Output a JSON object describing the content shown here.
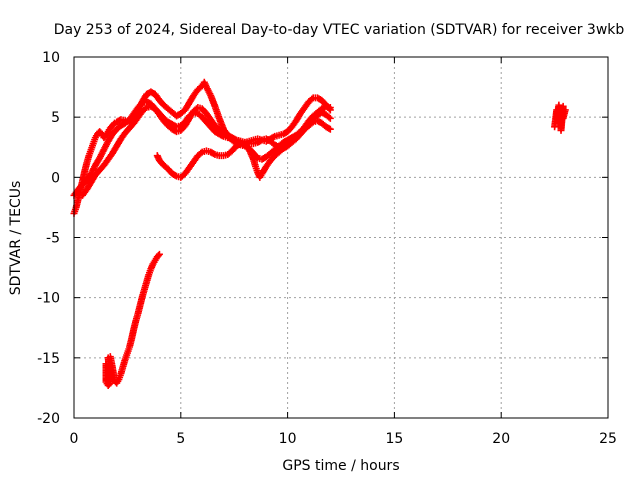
{
  "chart_data": {
    "type": "scatter",
    "title": "Day 253 of 2024, Sidereal Day-to-day VTEC variation (SDTVAR) for receiver 3wkb",
    "xlabel": "GPS time / hours",
    "ylabel": "SDTVAR / TECUs",
    "xlim": [
      0,
      25
    ],
    "ylim": [
      -20,
      10
    ],
    "xticks": [
      "0",
      "5",
      "10",
      "15",
      "20",
      "25"
    ],
    "yticks": [
      "-20",
      "-15",
      "-10",
      "-5",
      "0",
      "5",
      "10"
    ],
    "grid": true,
    "marker": "plus",
    "color": "#ff0000",
    "series": [
      {
        "points": [
          [
            0.0,
            -3.0
          ],
          [
            0.1,
            -2.5
          ],
          [
            0.2,
            -1.8
          ],
          [
            0.3,
            -1.0
          ],
          [
            0.4,
            -0.3
          ],
          [
            0.5,
            0.5
          ],
          [
            0.6,
            1.2
          ],
          [
            0.7,
            1.8
          ],
          [
            0.8,
            2.3
          ],
          [
            0.9,
            2.8
          ],
          [
            1.0,
            3.3
          ],
          [
            1.1,
            3.6
          ],
          [
            1.2,
            3.8
          ],
          [
            1.3,
            3.6
          ],
          [
            1.4,
            3.3
          ],
          [
            1.5,
            3.5
          ],
          [
            1.6,
            3.8
          ],
          [
            1.7,
            4.1
          ],
          [
            1.8,
            4.3
          ],
          [
            1.9,
            4.5
          ],
          [
            2.0,
            4.6
          ],
          [
            2.2,
            4.8
          ],
          [
            2.4,
            4.7
          ],
          [
            2.6,
            4.6
          ],
          [
            2.8,
            4.9
          ],
          [
            3.0,
            5.6
          ],
          [
            3.2,
            6.3
          ],
          [
            3.4,
            6.9
          ],
          [
            3.6,
            7.1
          ],
          [
            3.8,
            6.9
          ],
          [
            4.0,
            6.4
          ],
          [
            4.2,
            6.0
          ],
          [
            4.4,
            5.7
          ],
          [
            4.6,
            5.4
          ],
          [
            4.8,
            5.1
          ],
          [
            5.0,
            5.3
          ],
          [
            5.2,
            5.6
          ],
          [
            5.4,
            6.2
          ],
          [
            5.6,
            6.8
          ],
          [
            5.8,
            7.3
          ],
          [
            6.0,
            7.6
          ],
          [
            6.1,
            7.9
          ],
          [
            6.2,
            7.5
          ],
          [
            6.4,
            6.8
          ],
          [
            6.6,
            5.9
          ],
          [
            6.8,
            4.9
          ],
          [
            7.0,
            4.0
          ],
          [
            7.2,
            3.5
          ],
          [
            7.4,
            3.3
          ],
          [
            7.6,
            3.1
          ],
          [
            7.8,
            3.0
          ],
          [
            8.0,
            2.9
          ],
          [
            8.2,
            3.0
          ],
          [
            8.4,
            3.1
          ],
          [
            8.6,
            3.2
          ],
          [
            8.8,
            3.1
          ],
          [
            9.0,
            3.0
          ],
          [
            9.2,
            3.2
          ],
          [
            9.4,
            3.4
          ],
          [
            9.6,
            3.5
          ],
          [
            9.8,
            3.6
          ],
          [
            10.0,
            3.8
          ],
          [
            10.2,
            4.2
          ],
          [
            10.4,
            4.7
          ],
          [
            10.6,
            5.3
          ],
          [
            10.8,
            5.8
          ],
          [
            11.0,
            6.3
          ],
          [
            11.2,
            6.6
          ],
          [
            11.4,
            6.6
          ],
          [
            11.6,
            6.4
          ],
          [
            11.8,
            6.0
          ],
          [
            12.0,
            5.6
          ]
        ]
      },
      {
        "points": [
          [
            0.0,
            -1.5
          ],
          [
            0.2,
            -1.0
          ],
          [
            0.4,
            -0.6
          ],
          [
            0.6,
            -0.2
          ],
          [
            0.8,
            0.3
          ],
          [
            1.0,
            1.0
          ],
          [
            1.2,
            1.6
          ],
          [
            1.4,
            2.3
          ],
          [
            1.6,
            3.0
          ],
          [
            1.8,
            3.6
          ],
          [
            2.0,
            4.0
          ],
          [
            2.2,
            4.3
          ],
          [
            2.4,
            4.5
          ],
          [
            2.6,
            4.8
          ],
          [
            2.8,
            5.3
          ],
          [
            3.0,
            5.8
          ],
          [
            3.2,
            6.2
          ],
          [
            3.4,
            6.3
          ],
          [
            3.6,
            6.1
          ],
          [
            3.8,
            5.7
          ],
          [
            4.0,
            5.2
          ],
          [
            4.2,
            4.7
          ],
          [
            4.4,
            4.3
          ],
          [
            4.6,
            4.0
          ],
          [
            4.8,
            3.8
          ],
          [
            5.0,
            3.9
          ],
          [
            5.2,
            4.3
          ],
          [
            5.4,
            4.9
          ],
          [
            5.6,
            5.5
          ],
          [
            5.8,
            5.8
          ],
          [
            6.0,
            5.7
          ],
          [
            6.2,
            5.3
          ],
          [
            6.4,
            4.8
          ],
          [
            6.6,
            4.3
          ],
          [
            6.8,
            4.0
          ],
          [
            7.0,
            3.7
          ],
          [
            7.2,
            3.4
          ],
          [
            7.4,
            3.1
          ],
          [
            7.6,
            2.8
          ],
          [
            7.8,
            2.7
          ],
          [
            8.0,
            2.6
          ],
          [
            8.2,
            2.4
          ],
          [
            8.4,
            2.0
          ],
          [
            8.6,
            1.6
          ],
          [
            8.8,
            1.5
          ],
          [
            9.0,
            1.7
          ],
          [
            9.2,
            2.0
          ],
          [
            9.4,
            2.3
          ],
          [
            9.6,
            2.6
          ],
          [
            9.8,
            2.9
          ],
          [
            10.0,
            3.1
          ],
          [
            10.2,
            3.3
          ],
          [
            10.4,
            3.5
          ],
          [
            10.6,
            3.8
          ],
          [
            10.8,
            4.1
          ],
          [
            11.0,
            4.4
          ],
          [
            11.2,
            4.8
          ],
          [
            11.4,
            5.2
          ],
          [
            11.6,
            5.4
          ],
          [
            11.8,
            5.2
          ],
          [
            12.0,
            4.9
          ]
        ]
      },
      {
        "points": [
          [
            0.4,
            -1.5
          ],
          [
            0.6,
            -1.0
          ],
          [
            0.8,
            -0.4
          ],
          [
            1.0,
            0.2
          ],
          [
            1.2,
            0.6
          ],
          [
            1.4,
            1.0
          ],
          [
            1.6,
            1.5
          ],
          [
            1.8,
            2.0
          ],
          [
            2.0,
            2.6
          ],
          [
            2.2,
            3.2
          ],
          [
            2.4,
            3.7
          ],
          [
            2.6,
            4.1
          ],
          [
            2.8,
            4.5
          ],
          [
            3.0,
            5.0
          ],
          [
            3.2,
            5.5
          ],
          [
            3.4,
            5.8
          ],
          [
            3.6,
            5.9
          ],
          [
            3.8,
            5.7
          ],
          [
            4.0,
            5.3
          ],
          [
            4.2,
            4.9
          ],
          [
            4.4,
            4.6
          ],
          [
            4.6,
            4.4
          ],
          [
            4.8,
            4.2
          ],
          [
            5.0,
            4.3
          ],
          [
            5.2,
            4.6
          ],
          [
            5.4,
            5.1
          ],
          [
            5.6,
            5.4
          ],
          [
            5.8,
            5.3
          ],
          [
            6.0,
            5.0
          ],
          [
            6.2,
            4.6
          ],
          [
            6.4,
            4.2
          ],
          [
            6.6,
            3.8
          ],
          [
            6.8,
            3.6
          ],
          [
            7.0,
            3.4
          ],
          [
            7.2,
            3.3
          ],
          [
            7.4,
            3.2
          ],
          [
            7.6,
            3.1
          ],
          [
            7.8,
            3.0
          ],
          [
            8.0,
            2.9
          ],
          [
            8.2,
            2.8
          ],
          [
            8.4,
            2.8
          ],
          [
            8.6,
            2.9
          ],
          [
            8.8,
            3.1
          ],
          [
            9.0,
            3.2
          ],
          [
            9.2,
            3.0
          ],
          [
            9.4,
            2.7
          ],
          [
            9.6,
            2.5
          ],
          [
            9.8,
            2.4
          ],
          [
            10.0,
            2.6
          ],
          [
            10.2,
            2.9
          ],
          [
            10.4,
            3.2
          ],
          [
            10.6,
            3.6
          ],
          [
            10.8,
            4.0
          ],
          [
            11.0,
            4.3
          ],
          [
            11.2,
            4.6
          ],
          [
            11.4,
            4.7
          ],
          [
            11.6,
            4.5
          ],
          [
            11.8,
            4.2
          ],
          [
            12.0,
            4.0
          ]
        ]
      },
      {
        "points": [
          [
            3.9,
            1.8
          ],
          [
            4.0,
            1.4
          ],
          [
            4.2,
            1.0
          ],
          [
            4.4,
            0.7
          ],
          [
            4.6,
            0.3
          ],
          [
            4.8,
            0.1
          ],
          [
            5.0,
            0.0
          ],
          [
            5.2,
            0.3
          ],
          [
            5.4,
            0.8
          ],
          [
            5.6,
            1.3
          ],
          [
            5.8,
            1.8
          ],
          [
            6.0,
            2.1
          ],
          [
            6.2,
            2.2
          ],
          [
            6.4,
            2.1
          ],
          [
            6.6,
            1.9
          ],
          [
            6.8,
            1.8
          ],
          [
            7.0,
            1.8
          ],
          [
            7.2,
            1.9
          ],
          [
            7.4,
            2.2
          ],
          [
            7.6,
            2.6
          ],
          [
            7.8,
            2.8
          ],
          [
            8.0,
            2.7
          ],
          [
            8.2,
            2.3
          ],
          [
            8.4,
            1.5
          ],
          [
            8.5,
            0.9
          ],
          [
            8.6,
            0.4
          ],
          [
            8.7,
            0.0
          ],
          [
            8.8,
            0.3
          ],
          [
            9.0,
            0.9
          ],
          [
            9.2,
            1.4
          ],
          [
            9.4,
            1.8
          ],
          [
            9.6,
            2.1
          ],
          [
            9.8,
            2.4
          ],
          [
            10.0,
            2.8
          ],
          [
            10.2,
            3.2
          ],
          [
            10.4,
            3.4
          ],
          [
            10.6,
            3.7
          ],
          [
            10.8,
            4.2
          ],
          [
            11.0,
            4.7
          ],
          [
            11.2,
            5.1
          ],
          [
            11.4,
            5.4
          ],
          [
            11.6,
            5.7
          ],
          [
            11.8,
            5.9
          ],
          [
            12.0,
            5.8
          ]
        ]
      },
      {
        "points": [
          [
            1.5,
            -15.5
          ],
          [
            1.5,
            -16.2
          ],
          [
            1.5,
            -17.0
          ],
          [
            1.6,
            -17.3
          ],
          [
            1.7,
            -17.1
          ],
          [
            1.6,
            -15.0
          ],
          [
            1.7,
            -14.9
          ],
          [
            1.8,
            -15.8
          ],
          [
            1.9,
            -16.9
          ],
          [
            2.0,
            -17.1
          ],
          [
            2.1,
            -16.8
          ],
          [
            2.2,
            -16.3
          ],
          [
            2.3,
            -15.7
          ],
          [
            2.4,
            -15.1
          ],
          [
            2.5,
            -14.6
          ],
          [
            2.6,
            -14.1
          ],
          [
            2.7,
            -13.4
          ],
          [
            2.8,
            -12.6
          ],
          [
            2.9,
            -11.9
          ],
          [
            3.0,
            -11.3
          ],
          [
            3.1,
            -10.6
          ],
          [
            3.2,
            -9.9
          ],
          [
            3.3,
            -9.3
          ],
          [
            3.4,
            -8.7
          ],
          [
            3.5,
            -8.1
          ],
          [
            3.6,
            -7.6
          ],
          [
            3.7,
            -7.2
          ],
          [
            3.8,
            -6.9
          ],
          [
            3.9,
            -6.6
          ],
          [
            4.0,
            -6.4
          ]
        ]
      },
      {
        "points": [
          [
            22.5,
            4.2
          ],
          [
            22.6,
            5.6
          ],
          [
            22.6,
            4.8
          ],
          [
            22.7,
            6.0
          ],
          [
            22.7,
            4.5
          ],
          [
            22.8,
            5.3
          ],
          [
            22.8,
            3.9
          ],
          [
            22.9,
            5.9
          ],
          [
            22.9,
            4.9
          ],
          [
            23.0,
            5.6
          ]
        ]
      }
    ]
  }
}
